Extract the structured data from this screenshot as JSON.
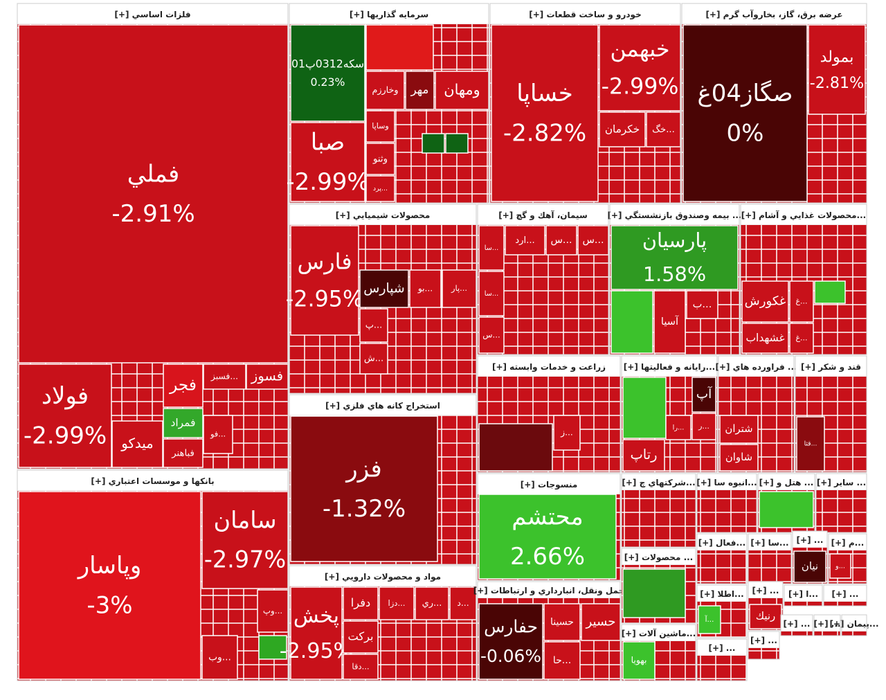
{
  "chart_data": {
    "type": "treemap",
    "expand_label": "[+]",
    "sectors": [
      {
        "name": "فلزات اساسي",
        "tiles": [
          {
            "label": "فملي",
            "value": -2.91,
            "value_label": "-2.91%",
            "color": "#c8111a"
          },
          {
            "label": "فولاد",
            "value": -2.99,
            "value_label": "-2.99%",
            "color": "#c8111a"
          },
          {
            "label": "ميدكو",
            "color": "#c8111a"
          },
          {
            "label": "فجر",
            "color": "#d8141c"
          },
          {
            "label": "فمراد",
            "color": "#33a82a"
          },
          {
            "label": "فباهنر",
            "color": "#c8111a"
          },
          {
            "label": "فسبز...",
            "color": "#c8111a"
          },
          {
            "label": "فسوز",
            "color": "#c8111a"
          },
          {
            "label": "فو...",
            "color": "#c8111a"
          }
        ]
      },
      {
        "name": "بانكها و موسسات اعتباري",
        "tiles": [
          {
            "label": "وپاسار",
            "value": -3,
            "value_label": "-3%",
            "color": "#e0141c"
          },
          {
            "label": "سامان",
            "value": -2.97,
            "value_label": "-2.97%",
            "color": "#c8111a"
          },
          {
            "label": "وپ...",
            "color": "#c8111a"
          },
          {
            "label": "وب...",
            "color": "#c8111a"
          },
          {
            "color": "#2ea822"
          }
        ]
      },
      {
        "name": "سرمايه گذاريها",
        "tiles": [
          {
            "label": "سكه0312پ01",
            "value": 0.23,
            "value_label": "0.23%",
            "color": "#0f6314"
          },
          {
            "label": "صبا",
            "value": -2.99,
            "value_label": "-2.99%",
            "color": "#c8111a"
          },
          {
            "label": "وخارزم",
            "color": "#c8111a"
          },
          {
            "label": "مهر",
            "color": "#8a0b0f"
          },
          {
            "label": "ومهان",
            "color": "#c8111a"
          },
          {
            "label": "وساپا",
            "color": "#c8111a"
          },
          {
            "label": "وثنو",
            "color": "#c8111a"
          },
          {
            "label": "پرد...",
            "color": "#c8111a"
          },
          {
            "color": "#0f6314"
          },
          {
            "color": "#0f6314"
          },
          {
            "color": "#e01a1a"
          }
        ]
      },
      {
        "name": "خودرو و ساخت قطعات",
        "tiles": [
          {
            "label": "خساپا",
            "value": -2.82,
            "value_label": "-2.82%",
            "color": "#c8111a"
          },
          {
            "label": "خبهمن",
            "value": -2.99,
            "value_label": "-2.99%",
            "color": "#c8111a"
          },
          {
            "label": "خكرمان",
            "color": "#c8111a"
          },
          {
            "label": "خگ...",
            "color": "#c8111a"
          }
        ]
      },
      {
        "name": "عرضه برق، گاز، بخاروآب گرم",
        "tiles": [
          {
            "label": "صگاز04غ",
            "value": 0,
            "value_label": "0%",
            "color": "#4a0505"
          },
          {
            "label": "بمولد",
            "value": -2.81,
            "value_label": "-2.81%",
            "color": "#c8111a"
          }
        ]
      },
      {
        "name": "محصولات شيميايي",
        "tiles": [
          {
            "label": "فارس",
            "value": -2.95,
            "value_label": "-2.95%",
            "color": "#c8111a"
          },
          {
            "label": "شپارس",
            "color": "#4a0505"
          },
          {
            "label": "بو...",
            "color": "#c8111a"
          },
          {
            "label": "پار...",
            "color": "#c8111a"
          },
          {
            "label": "پ...",
            "color": "#c8111a"
          },
          {
            "label": "ش...",
            "color": "#c8111a"
          }
        ]
      },
      {
        "name": "استخراج كانه هاي فلزي",
        "tiles": [
          {
            "label": "فزر",
            "value": -1.32,
            "value_label": "-1.32%",
            "color": "#8a0b0f"
          }
        ]
      },
      {
        "name": "مواد و محصولات دارويي",
        "tiles": [
          {
            "label": "پخش",
            "value": -2.95,
            "value_label": "-2.95%",
            "color": "#c8111a"
          },
          {
            "label": "دفرا",
            "color": "#c8111a"
          },
          {
            "label": "دزا...",
            "color": "#c8111a"
          },
          {
            "label": "ري...",
            "color": "#c8111a"
          },
          {
            "label": "د...",
            "color": "#c8111a"
          },
          {
            "label": "بركت",
            "color": "#c8111a"
          },
          {
            "label": "دقا...",
            "color": "#c8111a"
          }
        ]
      },
      {
        "name": "سيمان، آهك و گچ",
        "tiles": [
          {
            "label": "ارد...",
            "color": "#c8111a"
          },
          {
            "label": "س...",
            "color": "#c8111a"
          },
          {
            "label": "س...",
            "color": "#c8111a"
          },
          {
            "label": "سا...",
            "color": "#c8111a"
          },
          {
            "label": "سا...",
            "color": "#c8111a"
          },
          {
            "label": "س...",
            "color": "#c8111a"
          }
        ]
      },
      {
        "name": "بيمه وصندوق بازنشستگي ...",
        "tiles": [
          {
            "label": "پارسيان",
            "value": 1.58,
            "value_label": "1.58%",
            "color": "#2f9a22"
          },
          {
            "color": "#3cc22c"
          },
          {
            "label": "آسيا",
            "color": "#c8111a"
          },
          {
            "label": "ب...",
            "color": "#c8111a"
          }
        ]
      },
      {
        "name": "محصولات غذايي و آشام...",
        "tiles": [
          {
            "label": "غكورش",
            "color": "#c8111a"
          },
          {
            "label": "غشهداب",
            "color": "#c8111a"
          },
          {
            "label": "غ...",
            "color": "#c8111a"
          },
          {
            "label": "غ...",
            "color": "#c8111a"
          },
          {
            "color": "#3cc22c"
          }
        ]
      },
      {
        "name": "زراعت و خدمات وابسته",
        "tiles": [
          {
            "label": "ز...",
            "color": "#c8111a"
          },
          {
            "color": "#6b0a0d"
          }
        ]
      },
      {
        "name": "رايانه و فعاليتها...",
        "tiles": [
          {
            "color": "#3cc22c"
          },
          {
            "label": "رتاپ",
            "color": "#c8111a"
          },
          {
            "label": "آپ",
            "color": "#4a0505"
          },
          {
            "label": "را...",
            "color": "#c8111a"
          },
          {
            "label": "ر...",
            "color": "#c8111a"
          }
        ]
      },
      {
        "name": "فراورده هاي ...",
        "tiles": [
          {
            "label": "شتران",
            "color": "#c8111a"
          },
          {
            "label": "شاوان",
            "color": "#c8111a"
          }
        ]
      },
      {
        "name": "قند و شكر",
        "tiles": [
          {
            "label": "قثا...",
            "color": "#8a0b0f"
          }
        ]
      },
      {
        "name": "منسوجات",
        "tiles": [
          {
            "label": "محتشم",
            "value": 2.66,
            "value_label": "2.66%",
            "color": "#3cc22c"
          }
        ]
      },
      {
        "name": "حمل ونقل، انبارداري و ارتباطات",
        "tiles": [
          {
            "label": "حفارس",
            "value": -0.06,
            "value_label": "-0.06%",
            "color": "#4a0505"
          },
          {
            "label": "حسينا",
            "color": "#c8111a"
          },
          {
            "label": "حسير",
            "color": "#c8111a"
          },
          {
            "label": "حا...",
            "color": "#c8111a"
          }
        ]
      },
      {
        "name": "شركتهاي چ...",
        "tiles": []
      },
      {
        "name": "انبوه سا...",
        "tiles": []
      },
      {
        "name": "هتل و ...",
        "tiles": [
          {
            "color": "#3cc22c"
          }
        ]
      },
      {
        "name": "ساير ...",
        "tiles": []
      },
      {
        "name": "محصولات ...",
        "tiles": [
          {
            "color": "#2f9a22"
          }
        ]
      },
      {
        "name": "ماشين آلات...",
        "tiles": [
          {
            "label": "بهويا",
            "color": "#3cc22c"
          }
        ]
      },
      {
        "name": "فعال...",
        "tiles": []
      },
      {
        "name": "سا...",
        "tiles": []
      },
      {
        "name": "...",
        "tiles": [
          {
            "label": "نيان",
            "color": "#4a0505"
          }
        ]
      },
      {
        "name": "م...",
        "tiles": [
          {
            "label": "و...",
            "color": "#c8111a"
          }
        ]
      },
      {
        "name": "اطلا...",
        "tiles": [
          {
            "label": "آ...",
            "color": "#3cc22c"
          }
        ]
      },
      {
        "name": "...",
        "tiles": [
          {
            "label": "رنيك",
            "color": "#c8111a"
          }
        ]
      },
      {
        "name": "ا...",
        "tiles": []
      },
      {
        "name": "...",
        "tiles": []
      },
      {
        "name": "...",
        "tiles": []
      },
      {
        "name": "...",
        "tiles": []
      },
      {
        "name": "...",
        "tiles": []
      },
      {
        "name": "پيمان...",
        "tiles": []
      },
      {
        "name": "...",
        "tiles": []
      }
    ]
  }
}
